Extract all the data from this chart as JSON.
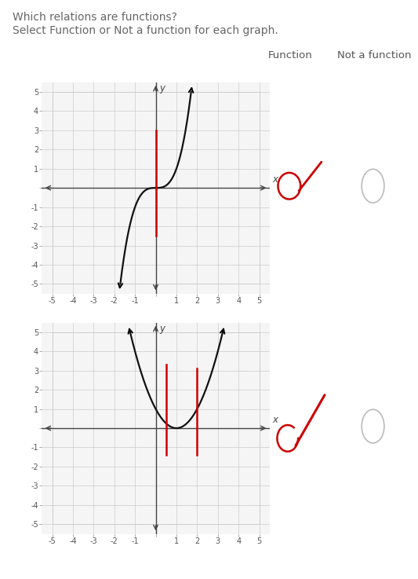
{
  "title_line1": "Which relations are functions?",
  "title_line2": "Select Function or Not a function for each graph.",
  "bg_color": "#ffffff",
  "header_bg": "#ebebeb",
  "row_bg1": "#f5f5f5",
  "row_bg2": "#ffffff",
  "grid_color": "#cccccc",
  "axis_color": "#444444",
  "curve_color": "#111111",
  "vline_color": "#cc0000",
  "col_header_function": "Function",
  "col_header_notfunction": "Not a function",
  "graph_xlim": [
    -5.5,
    5.5
  ],
  "graph_ylim": [
    -5.5,
    5.5
  ],
  "title_fontsize": 10,
  "header_fontsize": 9.5,
  "tick_fontsize": 7
}
